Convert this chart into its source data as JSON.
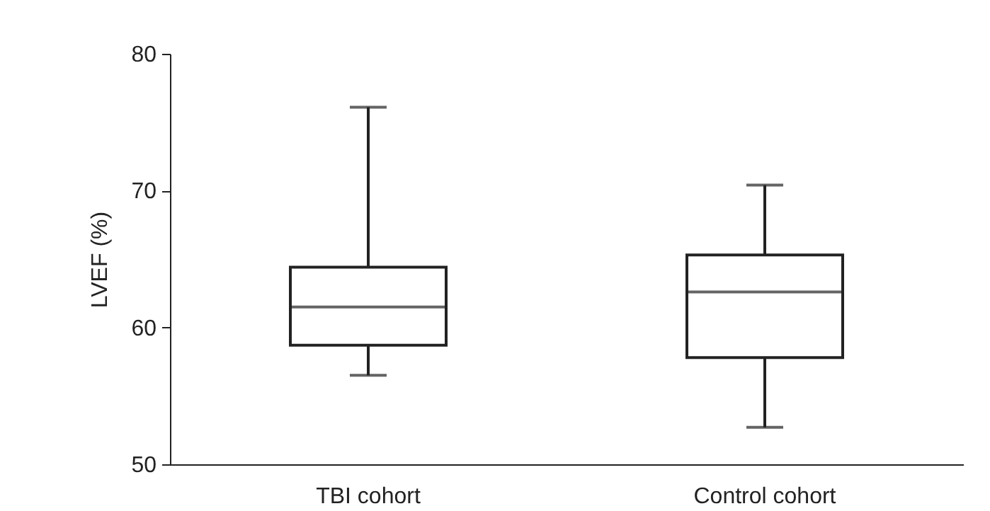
{
  "chart_data": {
    "type": "box",
    "ylabel": "LVEF (%)",
    "categories": [
      "TBI cohort",
      "Control cohort"
    ],
    "boxes": [
      {
        "low": 56.5,
        "q1": 58.7,
        "median": 61.5,
        "q3": 64.4,
        "high": 76.1
      },
      {
        "low": 52.7,
        "q1": 57.8,
        "median": 62.6,
        "q3": 65.3,
        "high": 70.4
      }
    ],
    "ylim": [
      50,
      80
    ],
    "yticks": [
      50,
      60,
      70,
      80
    ],
    "grid": false
  }
}
